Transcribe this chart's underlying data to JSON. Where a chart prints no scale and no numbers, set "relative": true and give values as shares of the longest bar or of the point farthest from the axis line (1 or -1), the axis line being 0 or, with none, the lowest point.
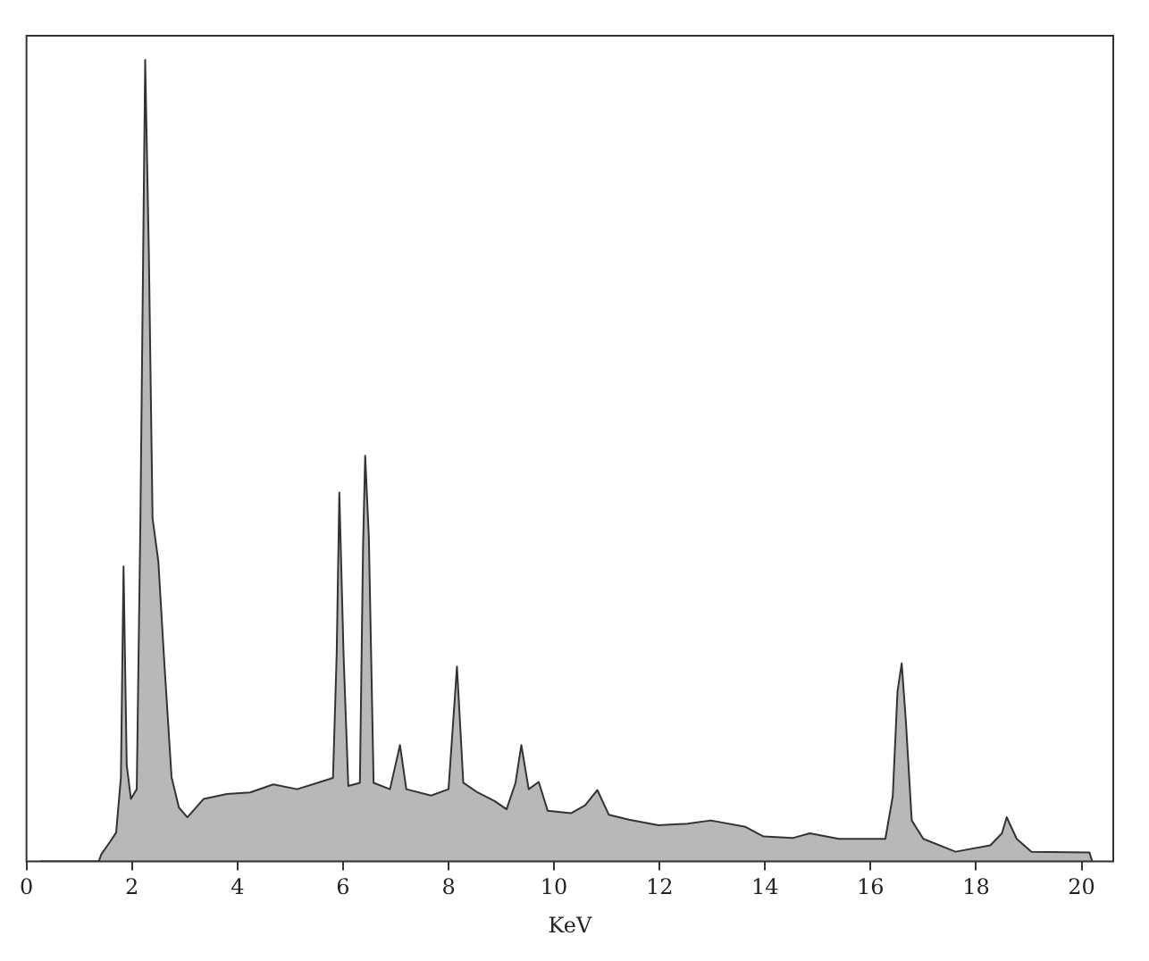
{
  "chart_data": {
    "type": "area",
    "xlabel": "KeV",
    "relative": true,
    "xlim": [
      0,
      20.6
    ],
    "xticks": [
      0,
      2,
      4,
      6,
      8,
      10,
      12,
      14,
      16,
      18,
      20
    ],
    "grid": false,
    "legend": false,
    "series": [
      {
        "color": "#333333",
        "x": [
          0.26,
          1.37,
          1.42,
          1.59,
          1.7,
          1.79,
          1.84,
          1.9,
          1.98,
          2.09,
          2.16,
          2.25,
          2.32,
          2.39,
          2.5,
          2.61,
          2.75,
          2.89,
          3.05,
          3.36,
          3.8,
          4.24,
          4.68,
          5.13,
          5.57,
          5.81,
          5.88,
          5.93,
          6.01,
          6.1,
          6.32,
          6.38,
          6.42,
          6.49,
          6.58,
          6.89,
          7.08,
          7.2,
          7.67,
          8.0,
          8.16,
          8.28,
          8.55,
          8.88,
          9.1,
          9.27,
          9.38,
          9.52,
          9.71,
          9.88,
          10.32,
          10.59,
          10.82,
          11.04,
          11.42,
          11.98,
          12.53,
          12.97,
          13.63,
          13.97,
          14.52,
          14.85,
          15.4,
          16.28,
          16.42,
          16.51,
          16.59,
          16.67,
          16.78,
          17.0,
          17.61,
          18.27,
          18.49,
          18.58,
          18.77,
          19.05,
          20.15,
          20.2
        ],
        "values": [
          0,
          0,
          0.009,
          0.025,
          0.036,
          0.105,
          0.368,
          0.12,
          0.078,
          0.09,
          0.428,
          1.0,
          0.758,
          0.428,
          0.374,
          0.251,
          0.105,
          0.067,
          0.055,
          0.078,
          0.084,
          0.086,
          0.096,
          0.09,
          0.099,
          0.104,
          0.259,
          0.46,
          0.259,
          0.094,
          0.098,
          0.393,
          0.506,
          0.404,
          0.098,
          0.09,
          0.145,
          0.09,
          0.082,
          0.09,
          0.243,
          0.098,
          0.086,
          0.075,
          0.065,
          0.098,
          0.145,
          0.09,
          0.099,
          0.063,
          0.06,
          0.07,
          0.089,
          0.058,
          0.052,
          0.045,
          0.047,
          0.051,
          0.043,
          0.031,
          0.029,
          0.035,
          0.028,
          0.028,
          0.081,
          0.212,
          0.247,
          0.174,
          0.051,
          0.028,
          0.012,
          0.02,
          0.035,
          0.055,
          0.028,
          0.012,
          0.011,
          0
        ]
      }
    ]
  }
}
